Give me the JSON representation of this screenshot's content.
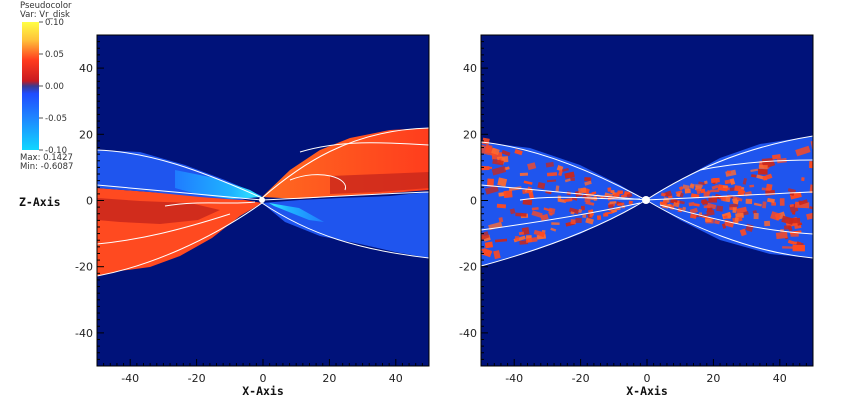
{
  "legend": {
    "plot_type": "Pseudocolor",
    "var_label": "Var: Vr_disk",
    "ticks": [
      "0.10",
      "0.05",
      "0.00",
      "-0.05",
      "-0.10"
    ],
    "max_label": "Max: 0.1427",
    "min_label": "Min: -0.6087",
    "colormap": [
      "#ffff44",
      "#ff9a2e",
      "#ff3a1e",
      "#c81a20",
      "#3d3a8e",
      "#1f4cff",
      "#1e86ff",
      "#11d7ff"
    ]
  },
  "colors": {
    "background": "#00127a",
    "disk_red": "#ff4a20",
    "disk_darkred": "#c9271c",
    "disk_blue": "#1f55ee",
    "disk_lightblue": "#1fa8ff",
    "disk_cyan": "#30e8ff",
    "contour": "#ffffff"
  },
  "chart_data": [
    {
      "type": "heatmap",
      "title": "",
      "xlabel": "X-Axis",
      "ylabel": "Z-Axis",
      "xlim": [
        -50,
        50
      ],
      "ylim": [
        -50,
        50
      ],
      "x_ticks": [
        "-40",
        "-20",
        "0",
        "20",
        "40"
      ],
      "y_ticks": [
        "40",
        "20",
        "0",
        "-20",
        "-40"
      ],
      "variable": "Vr_disk",
      "max": 0.1427,
      "min": -0.6087
    },
    {
      "type": "heatmap",
      "title": "",
      "xlabel": "X-Axis",
      "ylabel": "",
      "xlim": [
        -50,
        50
      ],
      "ylim": [
        -50,
        50
      ],
      "x_ticks": [
        "-40",
        "-20",
        "0",
        "20",
        "40"
      ],
      "y_ticks": [
        "40",
        "20",
        "0",
        "-20",
        "-40"
      ]
    }
  ]
}
